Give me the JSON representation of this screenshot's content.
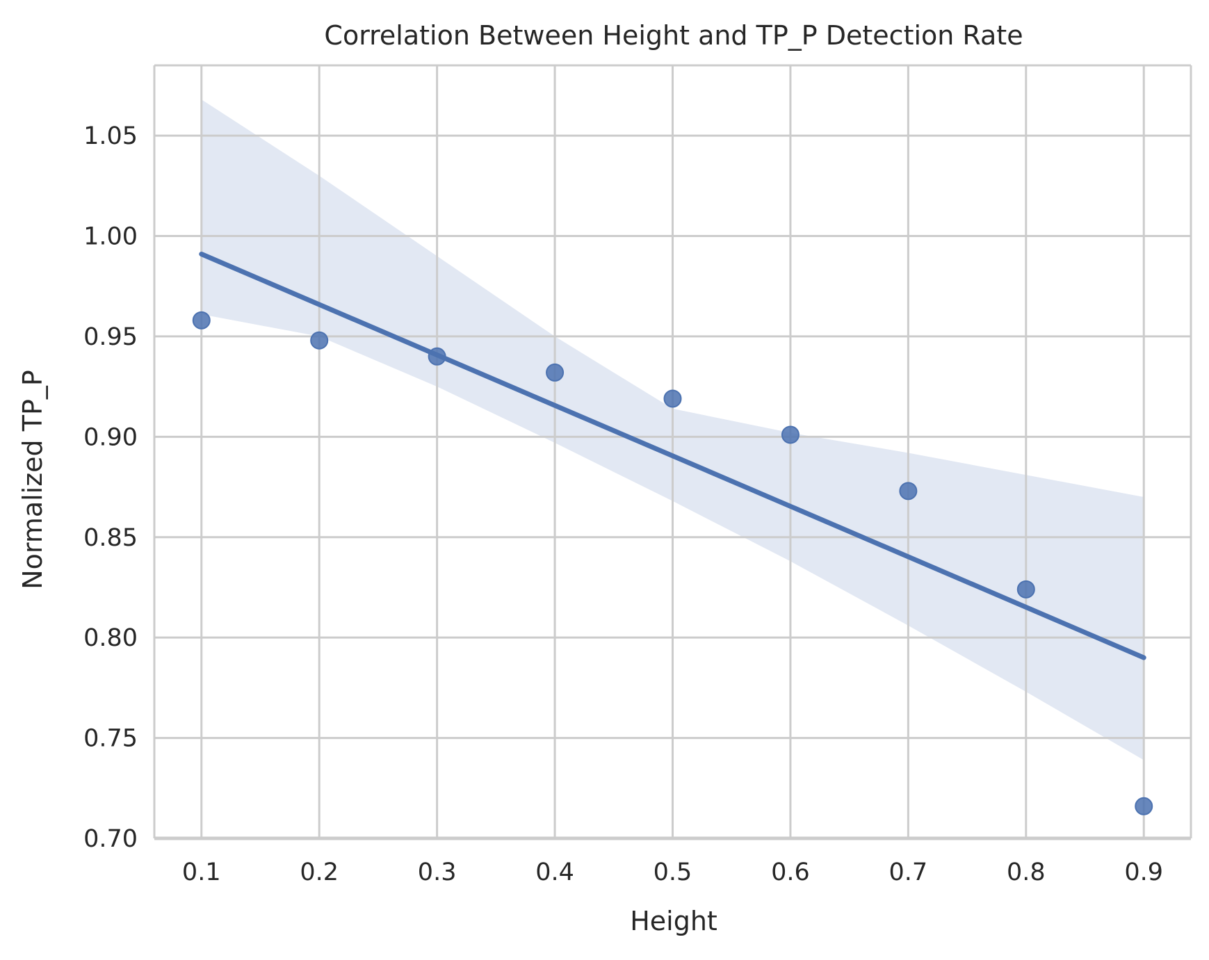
{
  "chart_data": {
    "type": "scatter",
    "title": "Correlation Between Height and TP_P Detection Rate",
    "xlabel": "Height",
    "ylabel": "Normalized TP_P",
    "xlim": [
      0.06,
      0.94
    ],
    "ylim": [
      0.7,
      1.085
    ],
    "xticks": [
      0.1,
      0.2,
      0.3,
      0.4,
      0.5,
      0.6,
      0.7,
      0.8,
      0.9
    ],
    "xtick_labels": [
      "0.1",
      "0.2",
      "0.3",
      "0.4",
      "0.5",
      "0.6",
      "0.7",
      "0.8",
      "0.9"
    ],
    "yticks": [
      0.7,
      0.75,
      0.8,
      0.85,
      0.9,
      0.95,
      1.0,
      1.05
    ],
    "ytick_labels": [
      "0.70",
      "0.75",
      "0.80",
      "0.85",
      "0.90",
      "0.95",
      "1.00",
      "1.05"
    ],
    "grid": true,
    "points": {
      "x": [
        0.1,
        0.2,
        0.3,
        0.4,
        0.5,
        0.6,
        0.7,
        0.8,
        0.9
      ],
      "y": [
        0.958,
        0.948,
        0.94,
        0.932,
        0.919,
        0.901,
        0.873,
        0.824,
        0.716
      ]
    },
    "regression_line": {
      "x": [
        0.1,
        0.9
      ],
      "y": [
        0.991,
        0.79
      ]
    },
    "confidence_band": {
      "x": [
        0.1,
        0.2,
        0.3,
        0.4,
        0.5,
        0.6,
        0.7,
        0.8,
        0.9
      ],
      "upper": [
        1.068,
        1.03,
        0.99,
        0.95,
        0.914,
        0.902,
        0.892,
        0.881,
        0.87
      ],
      "lower": [
        0.961,
        0.95,
        0.925,
        0.897,
        0.868,
        0.838,
        0.806,
        0.773,
        0.739
      ]
    },
    "colors": {
      "series": "#4c72b0",
      "band": "#e2e8f3",
      "grid": "#cccccc",
      "spine": "#cccccc",
      "text": "#262626"
    }
  }
}
